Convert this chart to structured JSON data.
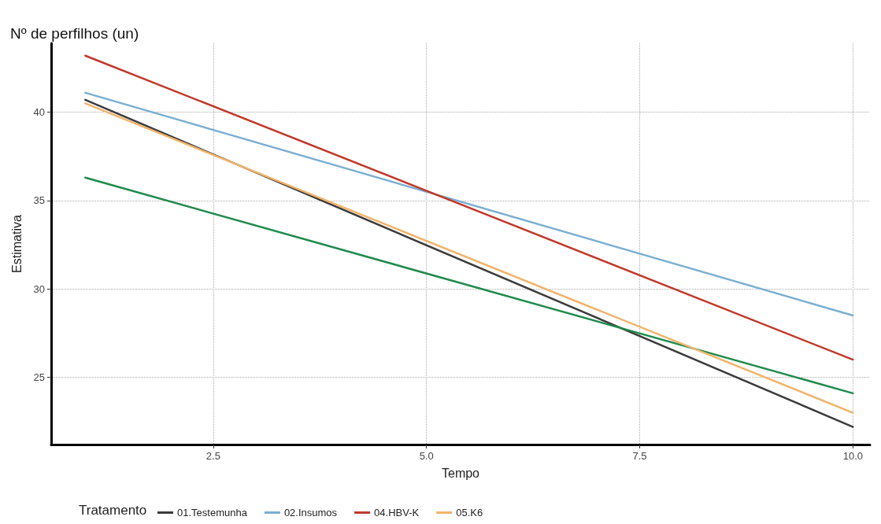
{
  "chart_data": {
    "type": "line",
    "title": "Nº de perfilhos (un)",
    "xlabel": "Tempo",
    "ylabel": "Estimativa",
    "legend_title": "Tratamento",
    "x": [
      1,
      10
    ],
    "series": [
      {
        "name": "01.Testemunha",
        "color": "#3b3b3b",
        "values": [
          40.7,
          22.2
        ]
      },
      {
        "name": "02.Insumos",
        "color": "#7aaed1",
        "values": [
          41.1,
          28.5
        ]
      },
      {
        "color": "#1f8a4c",
        "values": [
          36.3,
          24.1
        ]
      },
      {
        "name": "04.HBV-K",
        "color": "#c0392b",
        "values": [
          43.2,
          26.0
        ]
      },
      {
        "name": "05.K6",
        "color": "#f0b36b",
        "values": [
          40.5,
          23.0
        ]
      }
    ],
    "xlim": [
      0.6,
      10.2
    ],
    "xticks": [
      {
        "value": 2.5,
        "label": "2.5"
      },
      {
        "value": 5,
        "label": "5.0"
      },
      {
        "value": 7.5,
        "label": "7.5"
      },
      {
        "value": 10,
        "label": "10.0"
      }
    ],
    "ylim": [
      21.2,
      43.9
    ],
    "yticks": [
      25,
      30,
      35,
      40
    ],
    "grid": true,
    "legend": "bottom",
    "marker": "none",
    "line_style": "solid"
  }
}
